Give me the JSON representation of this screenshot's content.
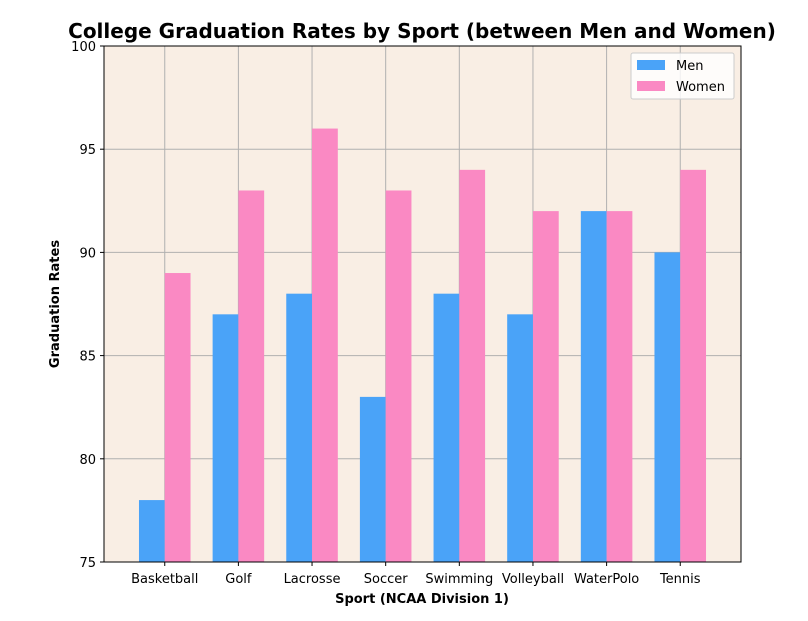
{
  "chart_data": {
    "type": "bar",
    "title": "College Graduation Rates by Sport (between Men and Women)",
    "xlabel": "Sport (NCAA Division 1)",
    "ylabel": "Graduation Rates",
    "categories": [
      "Basketball",
      "Golf",
      "Lacrosse",
      "Soccer",
      "Swimming",
      "Volleyball",
      "WaterPolo",
      "Tennis"
    ],
    "series": [
      {
        "name": "Men",
        "color": "#4aa3f8",
        "values": [
          78,
          87,
          88,
          83,
          88,
          87,
          92,
          90
        ]
      },
      {
        "name": "Women",
        "color": "#fa89c3",
        "values": [
          89,
          93,
          96,
          93,
          94,
          92,
          92,
          94
        ]
      }
    ],
    "ylim": [
      75,
      100
    ],
    "yticks": [
      75,
      80,
      85,
      90,
      95,
      100
    ],
    "grid": true,
    "legend_position": "top-right",
    "plot_background": "#f9eee4"
  }
}
